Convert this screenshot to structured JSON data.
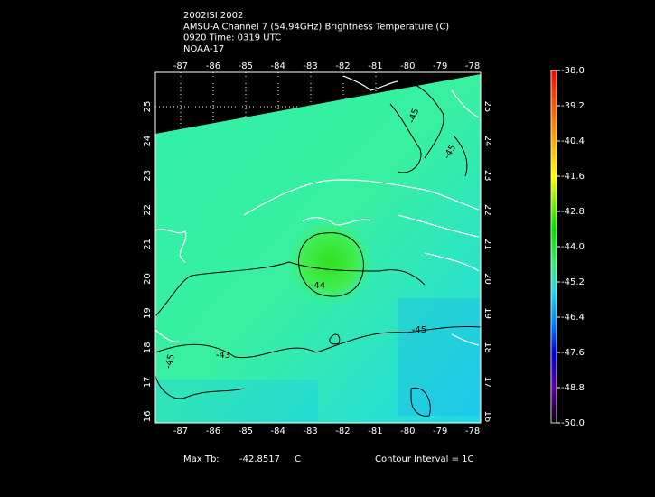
{
  "header": {
    "lines": [
      "2002ISI 2002",
      "AMSU-A Channel 7 (54.94GHz) Brightness Temperature (C)",
      "0920 Time: 0319 UTC",
      "NOAA-17"
    ]
  },
  "map": {
    "lon_labels": [
      "-87",
      "-86",
      "-85",
      "-84",
      "-83",
      "-82",
      "-81",
      "-80",
      "-79",
      "-78"
    ],
    "lat_labels": [
      "25",
      "24",
      "23",
      "22",
      "21",
      "20",
      "19",
      "18",
      "17",
      "16"
    ],
    "contour_labels": [
      "-45",
      "-45",
      "-44",
      "-45",
      "-43",
      "-45"
    ]
  },
  "colorbar": {
    "labels": [
      "-38.0",
      "-39.2",
      "-40.4",
      "-41.6",
      "-42.8",
      "-44.0",
      "-45.2",
      "-46.4",
      "-47.6",
      "-48.8",
      "-50.0"
    ]
  },
  "footer": {
    "max_label": "Max Tb:",
    "max_value": "-42.8517",
    "unit": "C",
    "contour_interval": "Contour Interval = 1C"
  }
}
